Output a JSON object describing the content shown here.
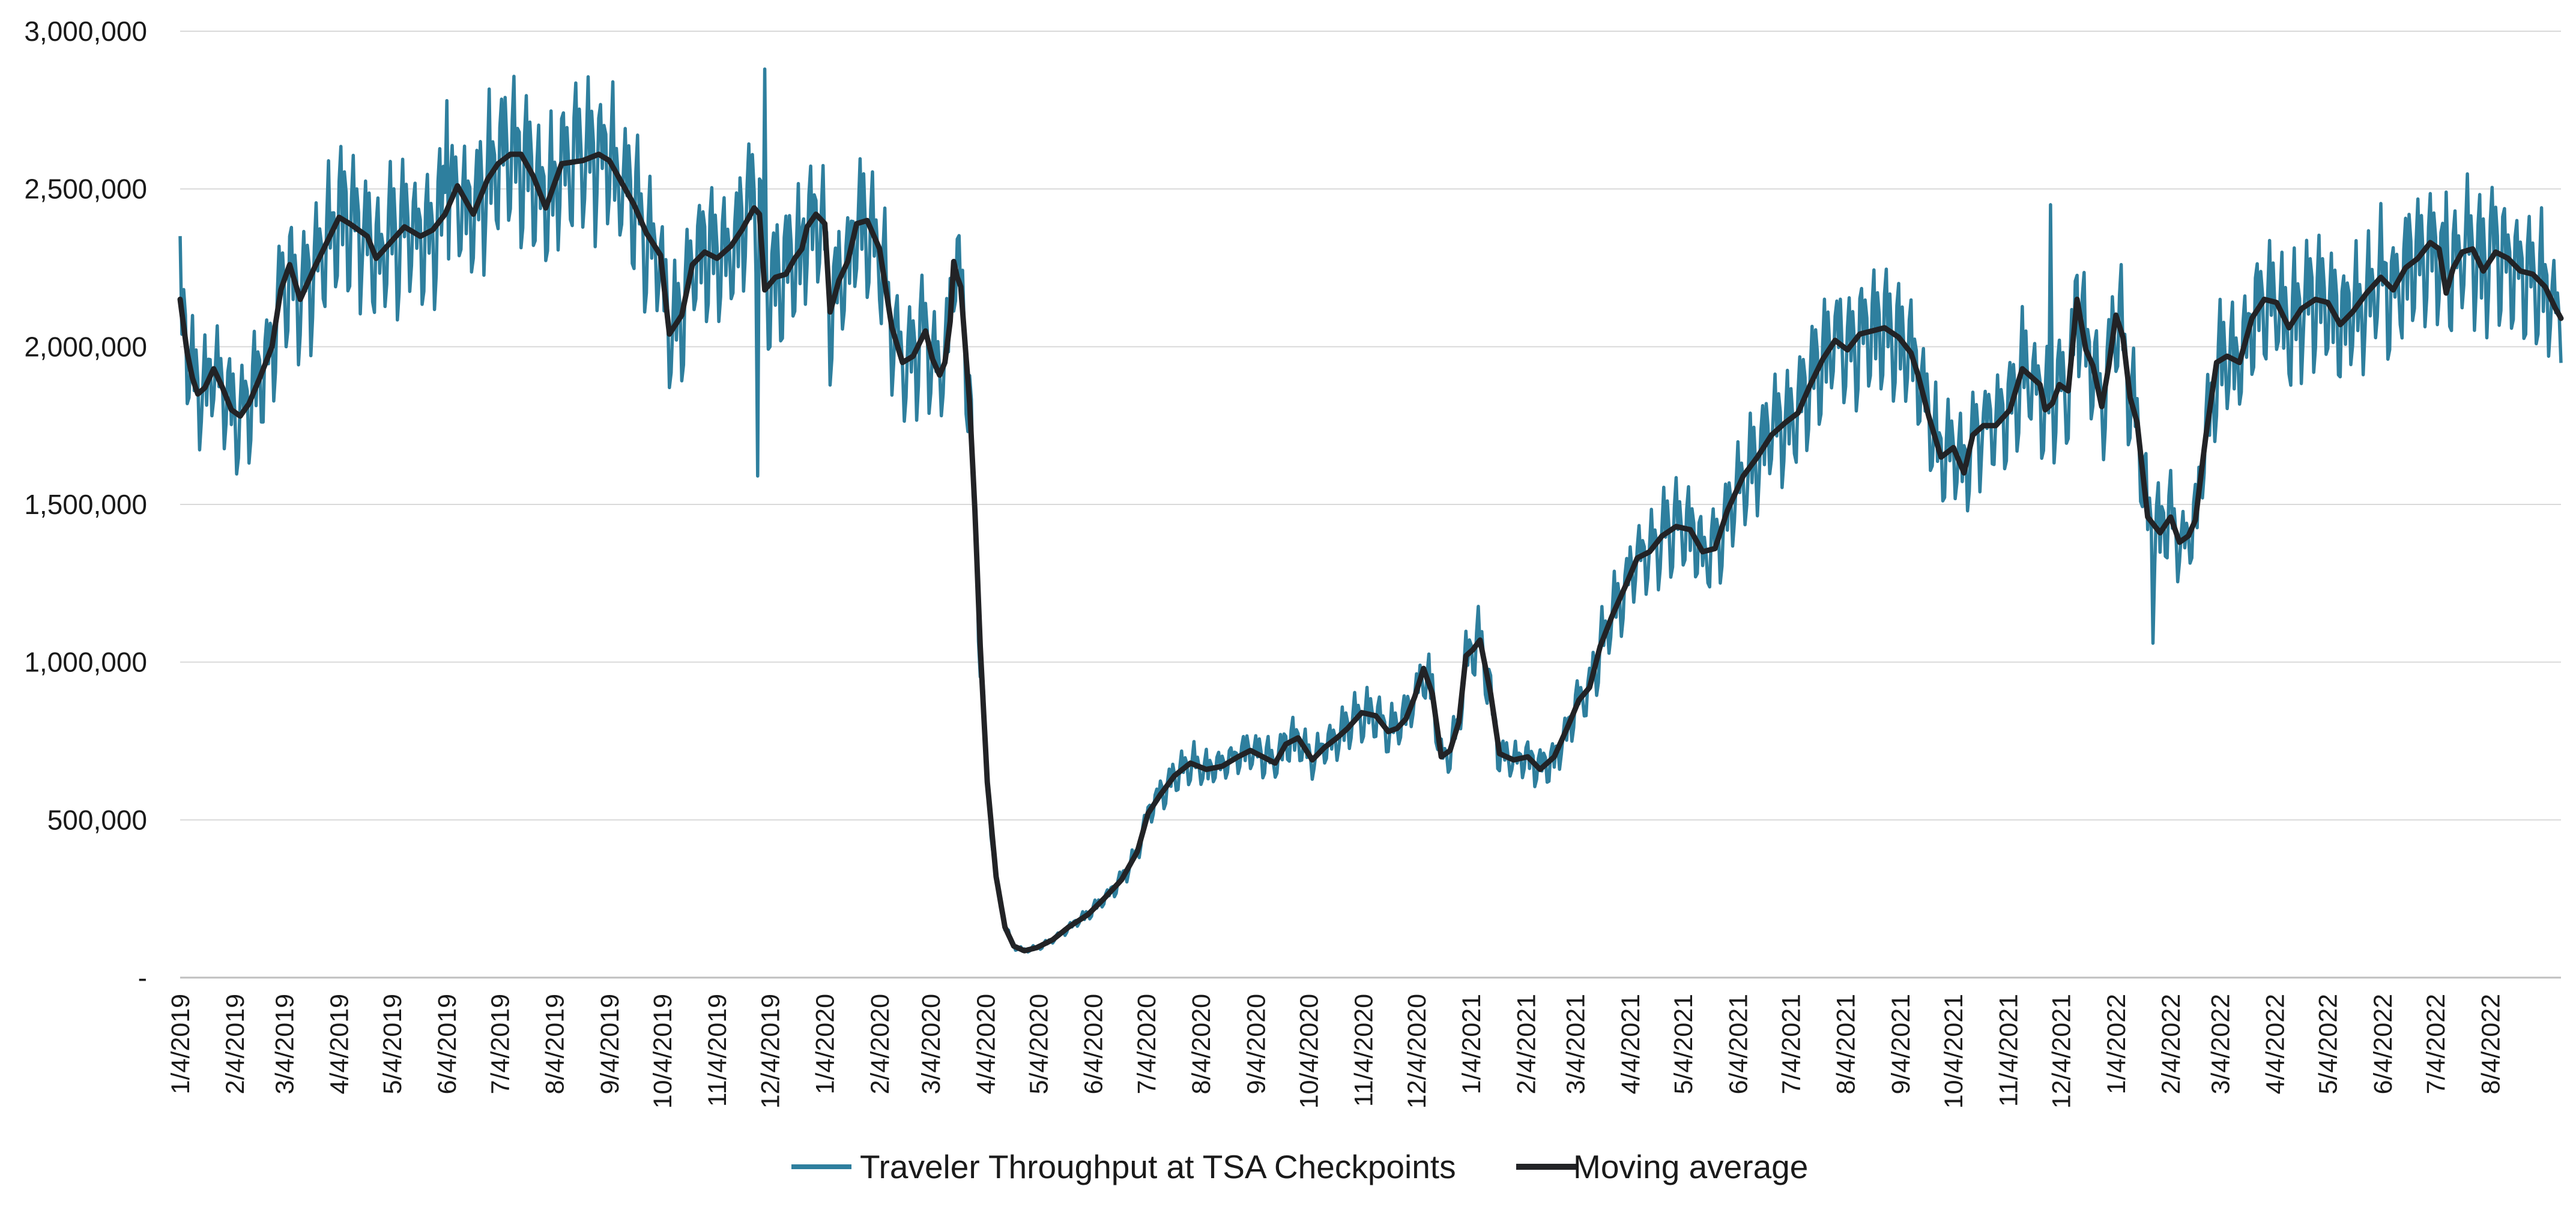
{
  "chart_data": {
    "type": "line",
    "title": "",
    "xlabel": "",
    "ylabel": "",
    "ylim": [
      0,
      3000000
    ],
    "x_range": [
      "2019-01-04",
      "2022-09-13"
    ],
    "grid": {
      "horizontal": true,
      "vertical": false
    },
    "legend_position": "bottom",
    "y_tick_labels": [
      "-",
      "500,000",
      "1,000,000",
      "1,500,000",
      "2,000,000",
      "2,500,000",
      "3,000,000"
    ],
    "y_tick_values": [
      0,
      500000,
      1000000,
      1500000,
      2000000,
      2500000,
      3000000
    ],
    "x_tick_labels": [
      "1/4/2019",
      "2/4/2019",
      "3/4/2019",
      "4/4/2019",
      "5/4/2019",
      "6/4/2019",
      "7/4/2019",
      "8/4/2019",
      "9/4/2019",
      "10/4/2019",
      "11/4/2019",
      "12/4/2019",
      "1/4/2020",
      "2/4/2020",
      "3/4/2020",
      "4/4/2020",
      "5/4/2020",
      "6/4/2020",
      "7/4/2020",
      "8/4/2020",
      "9/4/2020",
      "10/4/2020",
      "11/4/2020",
      "12/4/2020",
      "1/4/2021",
      "2/4/2021",
      "3/4/2021",
      "4/4/2021",
      "5/4/2021",
      "6/4/2021",
      "7/4/2021",
      "8/4/2021",
      "9/4/2021",
      "10/4/2021",
      "11/4/2021",
      "12/4/2021",
      "1/4/2022",
      "2/4/2022",
      "3/4/2022",
      "4/4/2022",
      "5/4/2022",
      "6/4/2022",
      "7/4/2022",
      "8/4/2022"
    ],
    "weekday_amplitude": 0.09,
    "series": [
      {
        "name": "Traveler Throughput at TSA Checkpoints",
        "color": "#2E7F9E",
        "description_of_values": "daily values, weekly oscillation of roughly ±9% around the moving average",
        "spikes": [
          {
            "x": "2019-06-04",
            "y": 2780000
          },
          {
            "x": "2019-07-07",
            "y": 2790000
          },
          {
            "x": "2019-11-27",
            "y": 1590000
          },
          {
            "x": "2019-12-01",
            "y": 2880000
          },
          {
            "x": "2021-11-28",
            "y": 2450000
          },
          {
            "x": "2022-01-25",
            "y": 1060000
          },
          {
            "x": "2022-07-10",
            "y": 2490000
          }
        ]
      },
      {
        "name": "Moving average",
        "color": "#222326",
        "x": [
          "2019-01-04",
          "2019-01-08",
          "2019-01-11",
          "2019-01-14",
          "2019-01-18",
          "2019-01-23",
          "2019-01-28",
          "2019-02-02",
          "2019-02-07",
          "2019-02-12",
          "2019-02-18",
          "2019-02-25",
          "2019-03-02",
          "2019-03-07",
          "2019-03-13",
          "2019-03-21",
          "2019-03-28",
          "2019-04-04",
          "2019-04-10",
          "2019-04-20",
          "2019-04-25",
          "2019-05-03",
          "2019-05-11",
          "2019-05-20",
          "2019-05-27",
          "2019-06-03",
          "2019-06-10",
          "2019-06-19",
          "2019-06-27",
          "2019-07-03",
          "2019-07-10",
          "2019-07-16",
          "2019-07-23",
          "2019-07-30",
          "2019-08-08",
          "2019-08-20",
          "2019-08-29",
          "2019-09-04",
          "2019-09-08",
          "2019-09-12",
          "2019-09-18",
          "2019-09-25",
          "2019-10-03",
          "2019-10-08",
          "2019-10-15",
          "2019-10-21",
          "2019-10-28",
          "2019-11-04",
          "2019-11-12",
          "2019-11-18",
          "2019-11-25",
          "2019-11-28",
          "2019-12-01",
          "2019-12-07",
          "2019-12-13",
          "2019-12-18",
          "2019-12-22",
          "2019-12-25",
          "2019-12-30",
          "2020-01-04",
          "2020-01-07",
          "2020-01-12",
          "2020-01-17",
          "2020-01-22",
          "2020-01-28",
          "2020-02-04",
          "2020-02-11",
          "2020-02-17",
          "2020-02-23",
          "2020-03-01",
          "2020-03-05",
          "2020-03-09",
          "2020-03-12",
          "2020-03-15",
          "2020-03-17",
          "2020-03-19",
          "2020-03-21",
          "2020-03-23",
          "2020-03-26",
          "2020-03-29",
          "2020-04-01",
          "2020-04-05",
          "2020-04-10",
          "2020-04-15",
          "2020-04-20",
          "2020-04-26",
          "2020-05-03",
          "2020-05-12",
          "2020-05-21",
          "2020-06-01",
          "2020-06-10",
          "2020-06-20",
          "2020-06-29",
          "2020-07-05",
          "2020-07-12",
          "2020-07-20",
          "2020-07-29",
          "2020-08-07",
          "2020-08-16",
          "2020-08-25",
          "2020-09-01",
          "2020-09-08",
          "2020-09-15",
          "2020-09-21",
          "2020-09-28",
          "2020-10-06",
          "2020-10-13",
          "2020-10-20",
          "2020-10-26",
          "2020-11-03",
          "2020-11-11",
          "2020-11-18",
          "2020-11-23",
          "2020-11-28",
          "2020-12-03",
          "2020-12-08",
          "2020-12-13",
          "2020-12-18",
          "2020-12-23",
          "2020-12-28",
          "2021-01-01",
          "2021-01-05",
          "2021-01-09",
          "2021-01-15",
          "2021-01-20",
          "2021-01-28",
          "2021-02-05",
          "2021-02-12",
          "2021-02-20",
          "2021-02-28",
          "2021-03-06",
          "2021-03-12",
          "2021-03-18",
          "2021-03-25",
          "2021-04-02",
          "2021-04-08",
          "2021-04-15",
          "2021-04-22",
          "2021-04-30",
          "2021-05-08",
          "2021-05-15",
          "2021-05-22",
          "2021-05-29",
          "2021-06-07",
          "2021-06-15",
          "2021-06-23",
          "2021-07-01",
          "2021-07-08",
          "2021-07-15",
          "2021-07-22",
          "2021-07-29",
          "2021-08-05",
          "2021-08-12",
          "2021-08-19",
          "2021-08-26",
          "2021-09-03",
          "2021-09-10",
          "2021-09-14",
          "2021-09-20",
          "2021-09-27",
          "2021-10-04",
          "2021-10-10",
          "2021-10-15",
          "2021-10-21",
          "2021-10-28",
          "2021-11-05",
          "2021-11-12",
          "2021-11-18",
          "2021-11-22",
          "2021-11-25",
          "2021-11-29",
          "2021-12-03",
          "2021-12-08",
          "2021-12-13",
          "2021-12-18",
          "2021-12-22",
          "2021-12-27",
          "2021-12-31",
          "2022-01-04",
          "2022-01-08",
          "2022-01-12",
          "2022-01-16",
          "2022-01-22",
          "2022-01-29",
          "2022-02-04",
          "2022-02-09",
          "2022-02-14",
          "2022-02-18",
          "2022-02-24",
          "2022-03-02",
          "2022-03-08",
          "2022-03-15",
          "2022-03-22",
          "2022-03-29",
          "2022-04-05",
          "2022-04-12",
          "2022-04-19",
          "2022-04-27",
          "2022-05-04",
          "2022-05-11",
          "2022-05-18",
          "2022-05-26",
          "2022-06-03",
          "2022-06-10",
          "2022-06-17",
          "2022-06-24",
          "2022-07-01",
          "2022-07-06",
          "2022-07-10",
          "2022-07-14",
          "2022-07-19",
          "2022-07-25",
          "2022-07-31",
          "2022-08-07",
          "2022-08-14",
          "2022-08-21",
          "2022-08-28",
          "2022-09-04",
          "2022-09-10",
          "2022-09-13"
        ],
        "y": [
          2150000,
          1980000,
          1900000,
          1850000,
          1870000,
          1930000,
          1870000,
          1800000,
          1780000,
          1820000,
          1900000,
          2000000,
          2180000,
          2260000,
          2150000,
          2250000,
          2330000,
          2410000,
          2390000,
          2350000,
          2280000,
          2330000,
          2380000,
          2350000,
          2370000,
          2420000,
          2510000,
          2420000,
          2530000,
          2580000,
          2610000,
          2610000,
          2540000,
          2440000,
          2580000,
          2590000,
          2610000,
          2590000,
          2550000,
          2510000,
          2450000,
          2360000,
          2290000,
          2040000,
          2100000,
          2260000,
          2300000,
          2280000,
          2320000,
          2370000,
          2440000,
          2420000,
          2180000,
          2220000,
          2230000,
          2280000,
          2310000,
          2380000,
          2420000,
          2390000,
          2110000,
          2210000,
          2270000,
          2390000,
          2400000,
          2310000,
          2060000,
          1950000,
          1970000,
          2050000,
          1960000,
          1910000,
          1950000,
          2080000,
          2270000,
          2220000,
          2190000,
          2040000,
          1820000,
          1480000,
          1050000,
          620000,
          320000,
          160000,
          100000,
          85000,
          95000,
          120000,
          160000,
          200000,
          250000,
          310000,
          400000,
          520000,
          580000,
          640000,
          680000,
          660000,
          670000,
          700000,
          720000,
          700000,
          680000,
          740000,
          760000,
          690000,
          730000,
          760000,
          790000,
          840000,
          830000,
          780000,
          790000,
          820000,
          890000,
          980000,
          900000,
          700000,
          720000,
          810000,
          1020000,
          1040000,
          1070000,
          900000,
          710000,
          690000,
          700000,
          660000,
          700000,
          800000,
          880000,
          920000,
          1050000,
          1150000,
          1250000,
          1330000,
          1350000,
          1400000,
          1430000,
          1420000,
          1350000,
          1360000,
          1480000,
          1590000,
          1650000,
          1720000,
          1760000,
          1790000,
          1880000,
          1960000,
          2020000,
          1990000,
          2040000,
          2050000,
          2060000,
          2030000,
          1980000,
          1910000,
          1780000,
          1650000,
          1680000,
          1600000,
          1720000,
          1750000,
          1750000,
          1800000,
          1930000,
          1900000,
          1880000,
          1800000,
          1820000,
          1880000,
          1860000,
          2150000,
          1990000,
          1940000,
          1810000,
          1940000,
          2100000,
          2030000,
          1840000,
          1760000,
          1460000,
          1410000,
          1460000,
          1380000,
          1400000,
          1450000,
          1720000,
          1950000,
          1970000,
          1950000,
          2090000,
          2150000,
          2140000,
          2060000,
          2120000,
          2150000,
          2140000,
          2070000,
          2110000,
          2170000,
          2220000,
          2180000,
          2250000,
          2280000,
          2330000,
          2310000,
          2170000,
          2250000,
          2300000,
          2310000,
          2240000,
          2300000,
          2280000,
          2240000,
          2230000,
          2190000,
          2120000,
          2090000
        ]
      }
    ]
  }
}
